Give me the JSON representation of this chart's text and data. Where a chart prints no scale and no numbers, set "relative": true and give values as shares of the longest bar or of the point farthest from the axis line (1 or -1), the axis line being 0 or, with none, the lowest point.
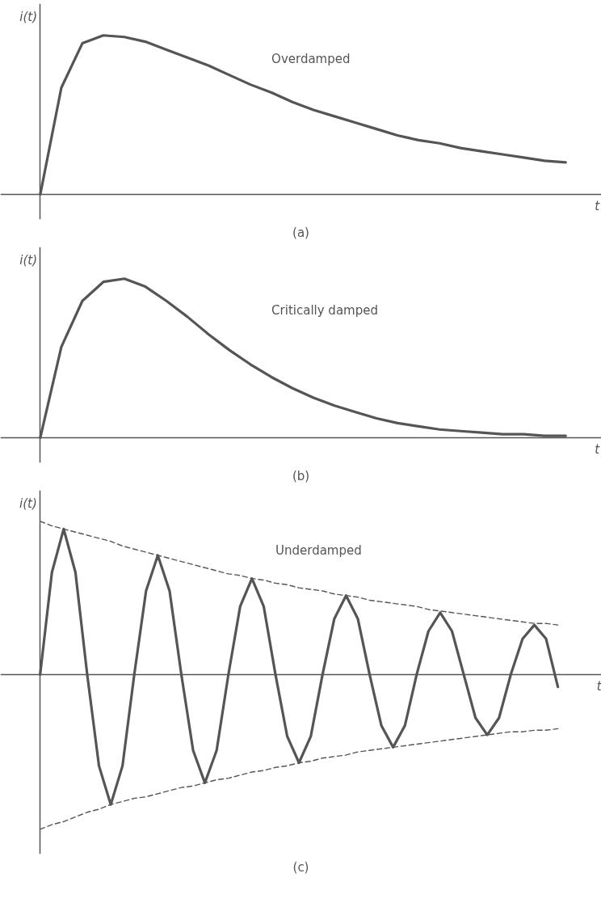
{
  "chart_data": [
    {
      "type": "line",
      "relative": true,
      "ylabel": "i(t)",
      "xlabel": "t",
      "annotations": [
        "(a)"
      ],
      "categories": [
        null,
        null,
        null,
        null,
        null,
        null,
        null,
        null,
        null,
        null,
        null,
        null,
        null,
        null,
        null,
        null,
        null,
        null,
        null,
        null,
        null,
        null,
        null,
        null,
        null,
        null,
        null
      ],
      "series": [
        {
          "name": "Overdamped",
          "color": "#555555",
          "values": [
            0,
            0.67,
            0.95,
            1.0,
            0.99,
            0.96,
            0.91,
            0.86,
            0.81,
            0.75,
            0.69,
            0.64,
            0.58,
            0.53,
            0.49,
            0.45,
            0.41,
            0.37,
            0.34,
            0.32,
            0.29,
            0.27,
            0.25,
            0.23,
            0.21,
            0.2,
            null
          ]
        }
      ]
    },
    {
      "type": "line",
      "relative": true,
      "ylabel": "i(t)",
      "xlabel": "t",
      "annotations": [
        "(b)"
      ],
      "categories": [
        null,
        null,
        null,
        null,
        null,
        null,
        null,
        null,
        null,
        null,
        null,
        null,
        null,
        null,
        null,
        null,
        null,
        null,
        null,
        null,
        null,
        null,
        null,
        null,
        null,
        null,
        null
      ],
      "series": [
        {
          "name": "Critically damped",
          "color": "#555555",
          "values": [
            0,
            0.57,
            0.86,
            0.98,
            1.0,
            0.95,
            0.86,
            0.76,
            0.65,
            0.55,
            0.46,
            0.38,
            0.31,
            0.25,
            0.2,
            0.16,
            0.12,
            0.09,
            0.07,
            0.05,
            0.04,
            0.03,
            0.02,
            0.02,
            0.01,
            0.01,
            null
          ]
        }
      ]
    },
    {
      "type": "line",
      "relative": true,
      "ylabel": "i(t)",
      "xlabel": "t",
      "annotations": [
        "(c)"
      ],
      "categories": [
        null,
        null,
        null,
        null,
        null,
        null,
        null,
        null,
        null,
        null,
        null,
        null,
        null,
        null,
        null,
        null,
        null,
        null,
        null,
        null,
        null,
        null,
        null,
        null,
        null,
        null,
        null,
        null,
        null,
        null,
        null,
        null,
        null,
        null,
        null,
        null,
        null,
        null,
        null,
        null,
        null,
        null,
        null,
        null,
        null,
        null,
        null,
        null
      ],
      "series": [
        {
          "name": "Underdamped",
          "color": "#555555",
          "values": [
            0,
            0.66,
            0.94,
            0.66,
            0,
            -0.59,
            -0.84,
            -0.59,
            0,
            0.54,
            0.77,
            0.54,
            0,
            -0.49,
            -0.7,
            -0.49,
            0,
            0.44,
            0.62,
            0.44,
            0,
            -0.4,
            -0.57,
            -0.4,
            0,
            0.36,
            0.51,
            0.36,
            0,
            -0.33,
            -0.47,
            -0.33,
            0,
            0.28,
            0.4,
            0.28,
            0,
            -0.28,
            -0.39,
            -0.28,
            0,
            0.23,
            0.32,
            0.23,
            -0.08,
            null,
            null,
            null
          ]
        },
        {
          "color": "#555555",
          "line_style": "dashed",
          "values": [
            0.99,
            0.96,
            0.94,
            0.92,
            0.9,
            0.88,
            0.86,
            0.83,
            0.81,
            0.79,
            0.77,
            0.75,
            0.73,
            0.71,
            0.69,
            0.67,
            0.65,
            0.64,
            0.62,
            0.61,
            0.59,
            0.58,
            0.56,
            0.55,
            0.54,
            0.52,
            0.51,
            0.5,
            0.48,
            0.47,
            0.46,
            0.45,
            0.44,
            0.42,
            0.41,
            0.4,
            0.39,
            0.38,
            0.37,
            0.36,
            0.35,
            0.34,
            0.33,
            0.33,
            0.32,
            null,
            null,
            null
          ]
        },
        {
          "color": "#555555",
          "line_style": "dashed",
          "values": [
            -1.0,
            -0.97,
            -0.95,
            -0.92,
            -0.89,
            -0.87,
            -0.84,
            -0.82,
            -0.8,
            -0.79,
            -0.77,
            -0.75,
            -0.73,
            -0.72,
            -0.7,
            -0.68,
            -0.67,
            -0.65,
            -0.63,
            -0.62,
            -0.6,
            -0.59,
            -0.57,
            -0.56,
            -0.54,
            -0.53,
            -0.52,
            -0.5,
            -0.49,
            -0.48,
            -0.47,
            -0.46,
            -0.45,
            -0.44,
            -0.43,
            -0.42,
            -0.41,
            -0.4,
            -0.39,
            -0.38,
            -0.37,
            -0.37,
            -0.36,
            -0.36,
            -0.35,
            null,
            null,
            null
          ]
        }
      ]
    }
  ]
}
